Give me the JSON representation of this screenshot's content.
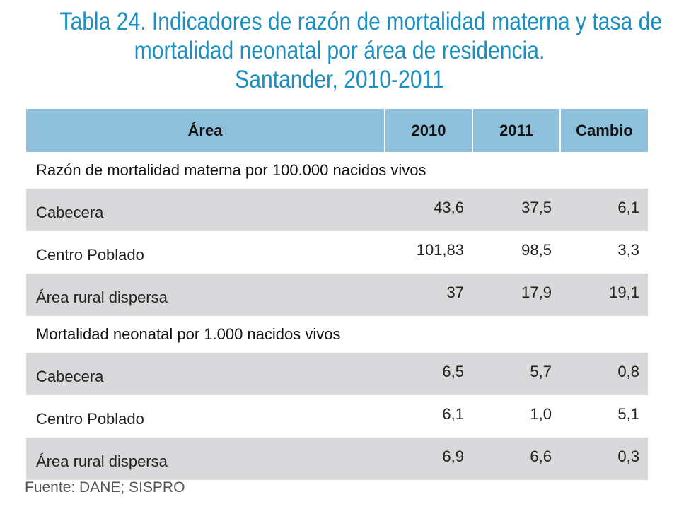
{
  "title": {
    "line1": "Tabla 24. Indicadores de razón de mortalidad materna y  tasa de",
    "line2": "mortalidad neonatal por área de residencia.",
    "line3": "Santander, 2010-2011"
  },
  "table": {
    "headers": [
      "Área",
      "2010",
      "2011",
      "Cambio"
    ],
    "sections": [
      {
        "heading": "Razón de mortalidad materna por 100.000 nacidos vivos",
        "rows": [
          {
            "area": "Cabecera",
            "y2010": "43,6",
            "y2011": "37,5",
            "cambio": "6,1"
          },
          {
            "area": "Centro Poblado",
            "y2010": "101,83",
            "y2011": "98,5",
            "cambio": "3,3"
          },
          {
            "area": "Área rural dispersa",
            "y2010": "37",
            "y2011": "17,9",
            "cambio": "19,1"
          }
        ]
      },
      {
        "heading": "Mortalidad neonatal por 1.000 nacidos vivos",
        "rows": [
          {
            "area": "Cabecera",
            "y2010": "6,5",
            "y2011": "5,7",
            "cambio": "0,8"
          },
          {
            "area": "Centro Poblado",
            "y2010": "6,1",
            "y2011": "1,0",
            "cambio": "5,1"
          },
          {
            "area": "Área rural dispersa",
            "y2010": "6,9",
            "y2011": "6,6",
            "cambio": "0,3"
          }
        ]
      }
    ]
  },
  "source": "Fuente: DANE; SISPRO",
  "colors": {
    "title": "#1a8fc2",
    "header_bg": "#8ec0db",
    "shaded_row": "#d9d9db"
  }
}
